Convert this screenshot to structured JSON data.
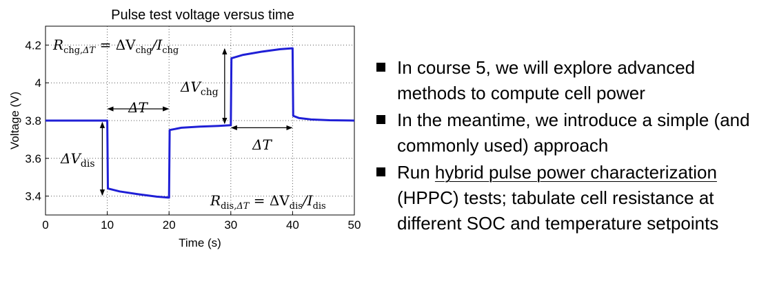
{
  "chart_data": {
    "type": "line",
    "title": "Pulse test voltage versus time",
    "xlabel": "Time (s)",
    "ylabel": "Voltage (V)",
    "xlim": [
      0,
      50
    ],
    "ylim": [
      3.3,
      4.3
    ],
    "xticks": [
      "0",
      "10",
      "20",
      "30",
      "40",
      "50"
    ],
    "yticks": [
      "3.4",
      "3.6",
      "3.8",
      "4",
      "4.2"
    ],
    "grid": true,
    "line_color": "#1f1fd6",
    "series": [
      {
        "x": [
          0,
          9.9,
          10.0,
          10.1,
          12,
          15,
          18,
          19.9,
          20.0,
          20.1,
          22,
          25,
          28,
          29.9,
          30.0,
          30.1,
          32,
          35,
          38,
          39.9,
          40.0,
          40.1,
          41,
          43,
          46,
          50
        ],
        "y": [
          3.8,
          3.8,
          3.8,
          3.44,
          3.425,
          3.41,
          3.397,
          3.392,
          3.392,
          3.75,
          3.762,
          3.768,
          3.772,
          3.775,
          3.775,
          4.13,
          4.148,
          4.165,
          4.178,
          4.183,
          4.183,
          3.825,
          3.814,
          3.806,
          3.802,
          3.8
        ]
      }
    ],
    "annotations": {
      "r_chg": {
        "r": "R",
        "r_sub": "chg,",
        "r_delta": "ΔT",
        "eq": " = ΔV",
        "v_sub": "chg",
        "slash": "/I",
        "i_sub": "chg"
      },
      "r_dis": {
        "r": "R",
        "r_sub": "dis,",
        "r_delta": "ΔT",
        "eq": " = ΔV",
        "v_sub": "dis",
        "slash": "/I",
        "i_sub": "dis"
      },
      "dv_chg": {
        "main": "ΔV",
        "sub": "chg"
      },
      "dv_dis": {
        "main": "ΔV",
        "sub": "dis"
      },
      "delta_t_1": "ΔT",
      "delta_t_2": "ΔT"
    }
  },
  "bullets": [
    {
      "text": "In course 5, we will explore advanced methods to compute cell power"
    },
    {
      "text": "In the meantime, we introduce a simple (and commonly used) approach"
    },
    {
      "text_link": "hybrid pulse power characterization",
      "text_before": "Run ",
      "text_after": " (HPPC) tests; tabulate cell resistance at different SOC and temperature setpoints"
    }
  ]
}
